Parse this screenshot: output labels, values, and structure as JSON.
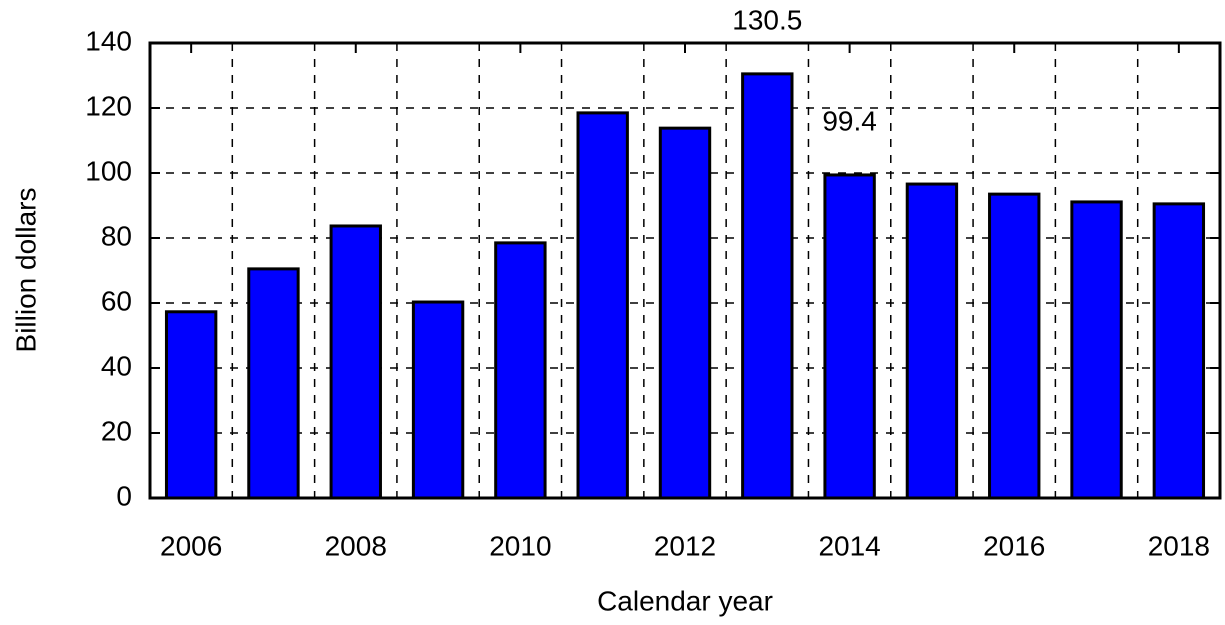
{
  "chart_data": {
    "type": "bar",
    "x": [
      2006,
      2007,
      2008,
      2009,
      2010,
      2011,
      2012,
      2013,
      2014,
      2015,
      2016,
      2017,
      2018
    ],
    "values": [
      57.3,
      70.5,
      83.7,
      60.3,
      78.5,
      118.5,
      113.8,
      130.5,
      99.4,
      96.6,
      93.5,
      91.1,
      90.5
    ],
    "value_labels": [
      null,
      null,
      null,
      null,
      null,
      null,
      null,
      "130.5",
      "99.4",
      null,
      null,
      null,
      null
    ],
    "color": "#0000ff",
    "xlim": [
      2005.5,
      2018.5
    ],
    "xticks": [
      2006,
      2008,
      2010,
      2012,
      2014,
      2016,
      2018
    ],
    "xgrid": [
      2006.5,
      2007.5,
      2008.5,
      2009.5,
      2010.5,
      2011.5,
      2012.5,
      2013.5,
      2014.5,
      2015.5,
      2016.5,
      2017.5
    ],
    "ylim": [
      0,
      140
    ],
    "yticks": [
      0,
      20,
      40,
      60,
      80,
      100,
      120,
      140
    ],
    "grid": true,
    "xlabel": "Calendar year",
    "ylabel": "Billion dollars"
  }
}
